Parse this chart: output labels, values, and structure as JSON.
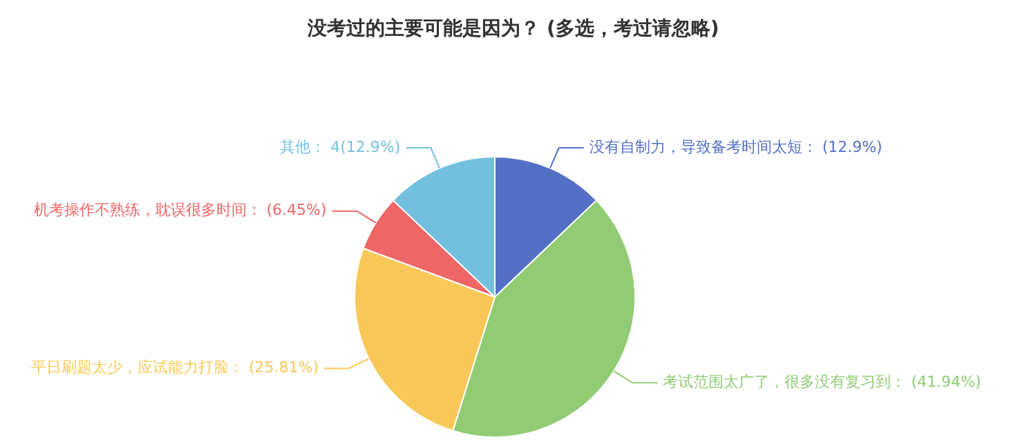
{
  "chart_data": {
    "type": "pie",
    "title": "没考过的主要可能是因为？ (多选，考过请忽略)",
    "categories": [
      "没有自制力，导致备考时间太短",
      "考试范围太广了，很多没有复习到",
      "平日刷题太少，应试能力打脸",
      "机考操作不熟练，耽误很多时间",
      "其他"
    ],
    "values": [
      12.9,
      41.94,
      25.81,
      6.45,
      12.9
    ],
    "value_labels": [
      "(12.9%)",
      "(41.94%)",
      "(25.81%)",
      "(6.45%)",
      "4(12.9%)"
    ],
    "colors": [
      "#5470c6",
      "#91cc75",
      "#fac858",
      "#ee6666",
      "#73c0de"
    ],
    "legend": false
  }
}
